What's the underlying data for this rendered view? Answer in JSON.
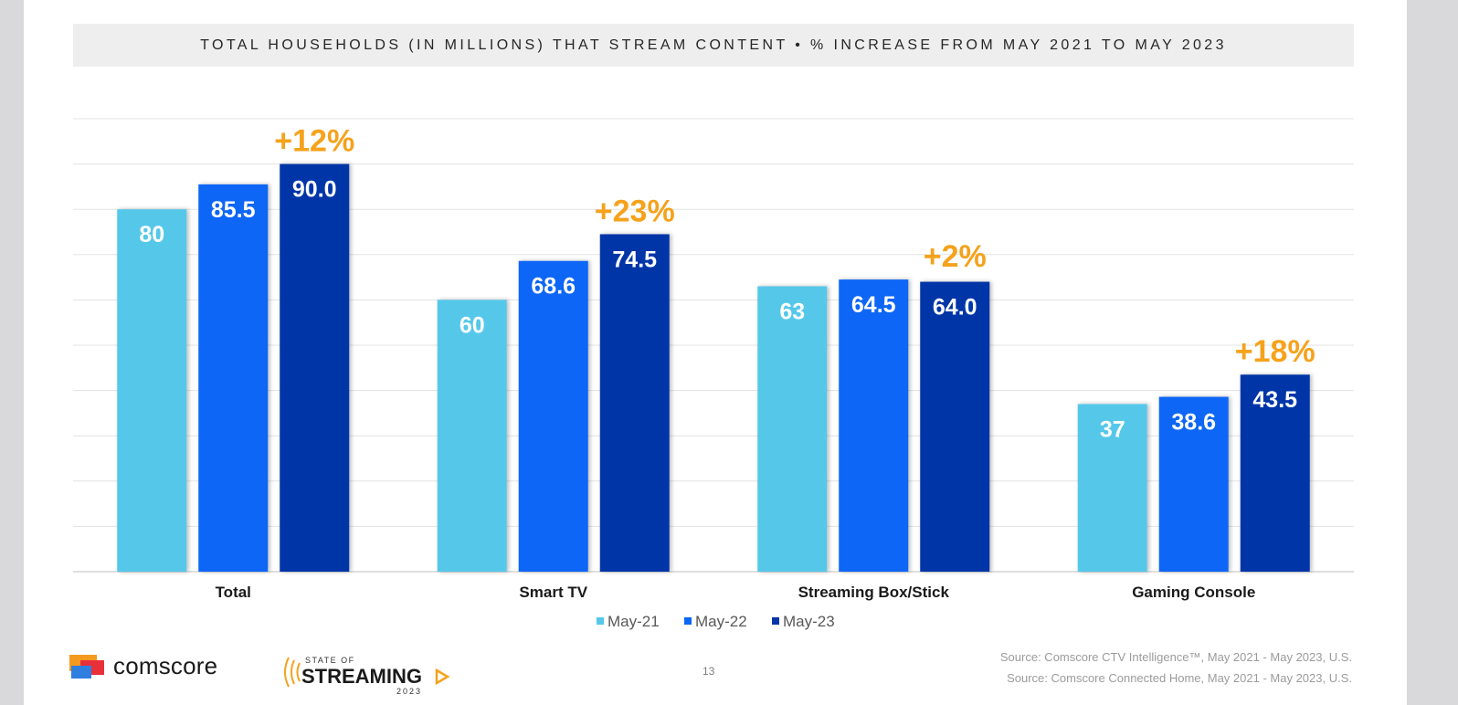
{
  "title": "TOTAL HOUSEHOLDS (IN MILLIONS) THAT STREAM CONTENT • % INCREASE FROM MAY 2021 TO MAY 2023",
  "chart_data": {
    "type": "bar",
    "categories": [
      "Total",
      "Smart TV",
      "Streaming Box/Stick",
      "Gaming Console"
    ],
    "series": [
      {
        "name": "May-21",
        "values": [
          80,
          60,
          63,
          37
        ],
        "labels": [
          "80",
          "60",
          "63",
          "37"
        ],
        "color": "#55c8ea"
      },
      {
        "name": "May-22",
        "values": [
          85.5,
          68.6,
          64.5,
          38.6
        ],
        "labels": [
          "85.5",
          "68.6",
          "64.5",
          "38.6"
        ],
        "color": "#0a66f5"
      },
      {
        "name": "May-23",
        "values": [
          90.0,
          74.5,
          64.0,
          43.5
        ],
        "labels": [
          "90.0",
          "74.5",
          "64.0",
          "43.5"
        ],
        "color": "#0535a8"
      }
    ],
    "annotations": [
      "+12%",
      "+23%",
      "+2%",
      "+18%"
    ],
    "annotation_color": "#f5a21c",
    "ylim": [
      0,
      100
    ],
    "grid": true,
    "legend": "bottom-center"
  },
  "footer": {
    "source_1": "Source: Comscore CTV Intelligence™, May 2021 - May 2023, U.S.",
    "source_2": "Source: Comscore Connected Home, May 2021 - May 2023, U.S.",
    "page_number": "13"
  },
  "branding": {
    "comscore": "comscore",
    "sos_top": "STATE OF",
    "sos_main": "STREAMING",
    "sos_year": "2023"
  }
}
